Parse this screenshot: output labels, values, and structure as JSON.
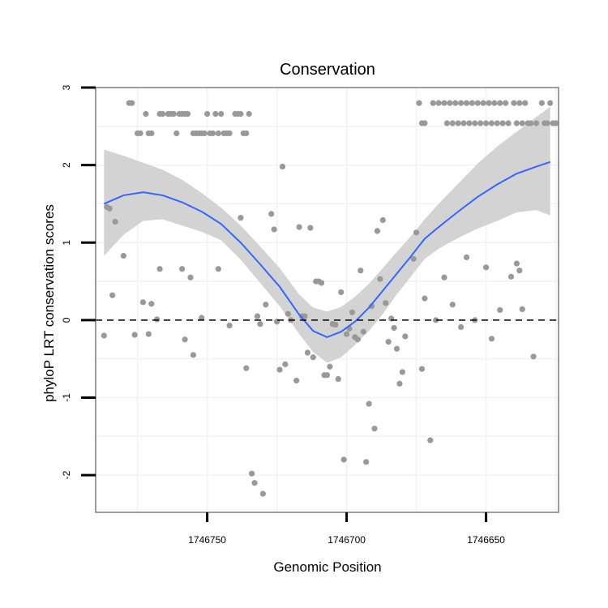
{
  "chart_data": {
    "type": "scatter",
    "title": "Conservation",
    "xlabel": "Genomic Position",
    "ylabel": "phyloP LRT conservation scores",
    "x_reversed": true,
    "xlim": [
      1746790,
      1746624
    ],
    "ylim": [
      -2.48,
      3.0
    ],
    "x_ticks": [
      1746750,
      1746700,
      1746650
    ],
    "x_tick_labels": [
      "1746750",
      "1746700",
      "1746650"
    ],
    "y_ticks": [
      -2,
      -1,
      0,
      1,
      2,
      3
    ],
    "y_tick_labels": [
      "-2",
      "-1",
      "0",
      "1",
      "2",
      "3"
    ],
    "grid": true,
    "reference_line": {
      "y": 0,
      "style": "dashed",
      "color": "#000000"
    },
    "colors": {
      "points": "#999999",
      "smooth": "#3366ff",
      "band": "#d3d3d3",
      "border": "#7f7f7f"
    },
    "points": [
      [
        1746778,
        2.8
      ],
      [
        1746777,
        2.8
      ],
      [
        1746775,
        2.41
      ],
      [
        1746774,
        2.41
      ],
      [
        1746772,
        2.66
      ],
      [
        1746771,
        2.41
      ],
      [
        1746770,
        2.41
      ],
      [
        1746767,
        2.66
      ],
      [
        1746766,
        2.66
      ],
      [
        1746764,
        2.66
      ],
      [
        1746763,
        2.66
      ],
      [
        1746762,
        2.66
      ],
      [
        1746761,
        2.41
      ],
      [
        1746760,
        2.66
      ],
      [
        1746759,
        2.66
      ],
      [
        1746758,
        2.66
      ],
      [
        1746757,
        2.66
      ],
      [
        1746755,
        2.41
      ],
      [
        1746754,
        2.41
      ],
      [
        1746753,
        2.41
      ],
      [
        1746752,
        2.41
      ],
      [
        1746751,
        2.41
      ],
      [
        1746750,
        2.66
      ],
      [
        1746749,
        2.41
      ],
      [
        1746748,
        2.41
      ],
      [
        1746747,
        2.66
      ],
      [
        1746746,
        2.41
      ],
      [
        1746745,
        2.66
      ],
      [
        1746744,
        2.41
      ],
      [
        1746743,
        2.41
      ],
      [
        1746742,
        2.41
      ],
      [
        1746740,
        2.66
      ],
      [
        1746739,
        2.66
      ],
      [
        1746738,
        2.66
      ],
      [
        1746737,
        2.41
      ],
      [
        1746736,
        2.41
      ],
      [
        1746735,
        2.66
      ],
      [
        1746674,
        2.8
      ],
      [
        1746673,
        2.54
      ],
      [
        1746672,
        2.54
      ],
      [
        1746669,
        2.8
      ],
      [
        1746667,
        2.8
      ],
      [
        1746665,
        2.8
      ],
      [
        1746664,
        2.54
      ],
      [
        1746663,
        2.8
      ],
      [
        1746662,
        2.54
      ],
      [
        1746661,
        2.8
      ],
      [
        1746660,
        2.54
      ],
      [
        1746659,
        2.8
      ],
      [
        1746658,
        2.54
      ],
      [
        1746657,
        2.8
      ],
      [
        1746656,
        2.54
      ],
      [
        1746655,
        2.8
      ],
      [
        1746654,
        2.54
      ],
      [
        1746653,
        2.8
      ],
      [
        1746652,
        2.54
      ],
      [
        1746651,
        2.8
      ],
      [
        1746650,
        2.54
      ],
      [
        1746649,
        2.8
      ],
      [
        1746648,
        2.54
      ],
      [
        1746647,
        2.8
      ],
      [
        1746646,
        2.54
      ],
      [
        1746645,
        2.8
      ],
      [
        1746644,
        2.54
      ],
      [
        1746643,
        2.8
      ],
      [
        1746642,
        2.54
      ],
      [
        1746640,
        2.8
      ],
      [
        1746639,
        2.54
      ],
      [
        1746638,
        2.8
      ],
      [
        1746637,
        2.54
      ],
      [
        1746636,
        2.8
      ],
      [
        1746635,
        2.54
      ],
      [
        1746634,
        2.54
      ],
      [
        1746632,
        2.54
      ],
      [
        1746630,
        2.8
      ],
      [
        1746629,
        2.54
      ],
      [
        1746628,
        2.54
      ],
      [
        1746627,
        2.8
      ],
      [
        1746626,
        2.54
      ],
      [
        1746625,
        2.54
      ],
      [
        1746786,
        1.46
      ],
      [
        1746785,
        1.44
      ],
      [
        1746783,
        1.27
      ],
      [
        1746780,
        0.83
      ],
      [
        1746784,
        0.32
      ],
      [
        1746787,
        -0.2
      ],
      [
        1746776,
        -0.19
      ],
      [
        1746773,
        0.23
      ],
      [
        1746770,
        0.21
      ],
      [
        1746768,
        0.01
      ],
      [
        1746771,
        -0.18
      ],
      [
        1746767,
        0.66
      ],
      [
        1746759,
        0.66
      ],
      [
        1746756,
        0.55
      ],
      [
        1746758,
        -0.25
      ],
      [
        1746755,
        -0.45
      ],
      [
        1746752,
        0.03
      ],
      [
        1746746,
        0.66
      ],
      [
        1746742,
        -0.07
      ],
      [
        1746738,
        1.32
      ],
      [
        1746736,
        -0.62
      ],
      [
        1746734,
        -1.98
      ],
      [
        1746733,
        -2.1
      ],
      [
        1746732,
        0.05
      ],
      [
        1746731,
        -0.05
      ],
      [
        1746730,
        -2.24
      ],
      [
        1746729,
        0.2
      ],
      [
        1746727,
        1.37
      ],
      [
        1746726,
        1.17
      ],
      [
        1746725,
        -0.02
      ],
      [
        1746723,
        1.98
      ],
      [
        1746724,
        -0.64
      ],
      [
        1746722,
        -0.57
      ],
      [
        1746721,
        0.08
      ],
      [
        1746720,
        0.0
      ],
      [
        1746718,
        -0.78
      ],
      [
        1746717,
        1.2
      ],
      [
        1746716,
        0.05
      ],
      [
        1746715,
        0.05
      ],
      [
        1746713,
        1.19
      ],
      [
        1746714,
        -0.42
      ],
      [
        1746712,
        -0.48
      ],
      [
        1746711,
        0.5
      ],
      [
        1746710,
        0.5
      ],
      [
        1746709,
        0.48
      ],
      [
        1746708,
        -0.71
      ],
      [
        1746707,
        -0.71
      ],
      [
        1746706,
        -0.6
      ],
      [
        1746705,
        -0.05
      ],
      [
        1746704,
        -0.06
      ],
      [
        1746703,
        -0.76
      ],
      [
        1746702,
        0.36
      ],
      [
        1746701,
        -1.8
      ],
      [
        1746700,
        -0.18
      ],
      [
        1746699,
        -0.11
      ],
      [
        1746698,
        0.1
      ],
      [
        1746697,
        -0.22
      ],
      [
        1746696,
        -0.25
      ],
      [
        1746695,
        0.64
      ],
      [
        1746694,
        -0.15
      ],
      [
        1746693,
        -1.83
      ],
      [
        1746692,
        -1.08
      ],
      [
        1746691,
        0.18
      ],
      [
        1746690,
        -1.4
      ],
      [
        1746689,
        1.15
      ],
      [
        1746688,
        0.53
      ],
      [
        1746687,
        1.29
      ],
      [
        1746686,
        0.22
      ],
      [
        1746685,
        -0.28
      ],
      [
        1746684,
        0.02
      ],
      [
        1746683,
        -0.1
      ],
      [
        1746682,
        -0.37
      ],
      [
        1746681,
        -0.82
      ],
      [
        1746680,
        -0.67
      ],
      [
        1746679,
        -0.21
      ],
      [
        1746676,
        0.79
      ],
      [
        1746675,
        1.13
      ],
      [
        1746673,
        -0.63
      ],
      [
        1746672,
        0.28
      ],
      [
        1746670,
        -1.55
      ],
      [
        1746668,
        0.0
      ],
      [
        1746665,
        0.55
      ],
      [
        1746662,
        0.2
      ],
      [
        1746659,
        -0.09
      ],
      [
        1746657,
        0.81
      ],
      [
        1746654,
        0.0
      ],
      [
        1746650,
        0.68
      ],
      [
        1746648,
        -0.24
      ],
      [
        1746645,
        0.13
      ],
      [
        1746641,
        0.56
      ],
      [
        1746639,
        0.73
      ],
      [
        1746638,
        0.64
      ],
      [
        1746637,
        0.14
      ],
      [
        1746633,
        -0.47
      ]
    ],
    "smooth": [
      [
        1746787,
        1.5
      ],
      [
        1746780,
        1.61
      ],
      [
        1746773,
        1.65
      ],
      [
        1746766,
        1.61
      ],
      [
        1746759,
        1.52
      ],
      [
        1746752,
        1.4
      ],
      [
        1746745,
        1.24
      ],
      [
        1746738,
        1.0
      ],
      [
        1746731,
        0.72
      ],
      [
        1746724,
        0.43
      ],
      [
        1746717,
        0.07
      ],
      [
        1746712,
        -0.14
      ],
      [
        1746707,
        -0.22
      ],
      [
        1746702,
        -0.15
      ],
      [
        1746697,
        -0.02
      ],
      [
        1746692,
        0.16
      ],
      [
        1746687,
        0.38
      ],
      [
        1746682,
        0.6
      ],
      [
        1746677,
        0.82
      ],
      [
        1746672,
        1.05
      ],
      [
        1746667,
        1.2
      ],
      [
        1746660,
        1.4
      ],
      [
        1746653,
        1.59
      ],
      [
        1746646,
        1.75
      ],
      [
        1746639,
        1.89
      ],
      [
        1746632,
        1.98
      ],
      [
        1746627,
        2.04
      ]
    ],
    "band_upper": [
      [
        1746787,
        2.2
      ],
      [
        1746780,
        2.12
      ],
      [
        1746773,
        2.03
      ],
      [
        1746766,
        1.94
      ],
      [
        1746759,
        1.81
      ],
      [
        1746752,
        1.64
      ],
      [
        1746745,
        1.45
      ],
      [
        1746738,
        1.22
      ],
      [
        1746731,
        0.95
      ],
      [
        1746724,
        0.67
      ],
      [
        1746717,
        0.33
      ],
      [
        1746712,
        0.16
      ],
      [
        1746707,
        0.11
      ],
      [
        1746702,
        0.17
      ],
      [
        1746697,
        0.3
      ],
      [
        1746692,
        0.47
      ],
      [
        1746687,
        0.67
      ],
      [
        1746682,
        0.88
      ],
      [
        1746677,
        1.08
      ],
      [
        1746672,
        1.3
      ],
      [
        1746667,
        1.5
      ],
      [
        1746660,
        1.76
      ],
      [
        1746653,
        2.02
      ],
      [
        1746646,
        2.24
      ],
      [
        1746639,
        2.43
      ],
      [
        1746632,
        2.62
      ],
      [
        1746627,
        2.75
      ]
    ],
    "band_lower": [
      [
        1746787,
        0.83
      ],
      [
        1746780,
        1.1
      ],
      [
        1746773,
        1.28
      ],
      [
        1746766,
        1.3
      ],
      [
        1746759,
        1.22
      ],
      [
        1746752,
        1.14
      ],
      [
        1746745,
        1.03
      ],
      [
        1746738,
        0.78
      ],
      [
        1746731,
        0.48
      ],
      [
        1746724,
        0.18
      ],
      [
        1746717,
        -0.18
      ],
      [
        1746712,
        -0.41
      ],
      [
        1746707,
        -0.55
      ],
      [
        1746702,
        -0.48
      ],
      [
        1746697,
        -0.32
      ],
      [
        1746692,
        -0.14
      ],
      [
        1746687,
        0.08
      ],
      [
        1746682,
        0.33
      ],
      [
        1746677,
        0.56
      ],
      [
        1746672,
        0.79
      ],
      [
        1746667,
        0.92
      ],
      [
        1746660,
        1.06
      ],
      [
        1746653,
        1.18
      ],
      [
        1746646,
        1.28
      ],
      [
        1746639,
        1.39
      ],
      [
        1746632,
        1.42
      ],
      [
        1746627,
        1.35
      ]
    ]
  }
}
